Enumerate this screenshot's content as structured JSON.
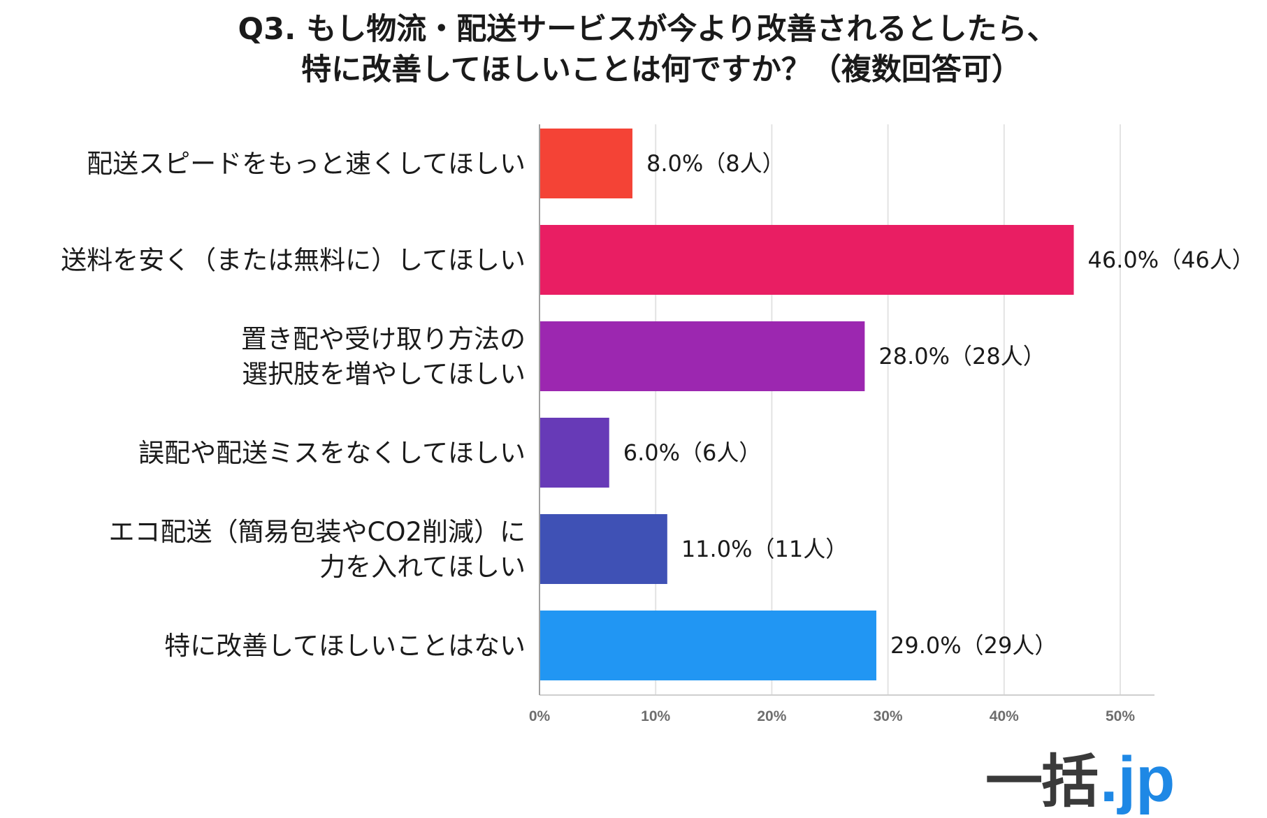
{
  "title": {
    "line1": "Q3. もし物流・配送サービスが今より改善されるとしたら、",
    "line2": "特に改善してほしいことは何ですか？（複数回答可）"
  },
  "chart_data": {
    "type": "bar",
    "orientation": "horizontal",
    "categories": [
      [
        "配送スピードをもっと速くしてほしい"
      ],
      [
        "送料を安く（または無料に）してほしい"
      ],
      [
        "置き配や受け取り方法の",
        "選択肢を増やしてほしい"
      ],
      [
        "誤配や配送ミスをなくしてほしい"
      ],
      [
        "エコ配送（簡易包装やCO2削減）に",
        "力を入れてほしい"
      ],
      [
        "特に改善してほしいことはない"
      ]
    ],
    "values": [
      8.0,
      46.0,
      28.0,
      6.0,
      11.0,
      29.0
    ],
    "counts": [
      8,
      46,
      28,
      6,
      11,
      29
    ],
    "data_labels": [
      "8.0%（8人）",
      "46.0%（46人）",
      "28.0%（28人）",
      "6.0%（6人）",
      "11.0%（11人）",
      "29.0%（29人）"
    ],
    "colors": [
      "#f44336",
      "#e91e63",
      "#9c27b0",
      "#673ab7",
      "#3f51b5",
      "#2196f3"
    ],
    "xlim": [
      0,
      50
    ],
    "xticks": [
      "0%",
      "10%",
      "20%",
      "30%",
      "40%",
      "50%"
    ],
    "grid": true,
    "legend": "none"
  },
  "logo": {
    "main": "一括",
    "suffix": ".jp"
  }
}
